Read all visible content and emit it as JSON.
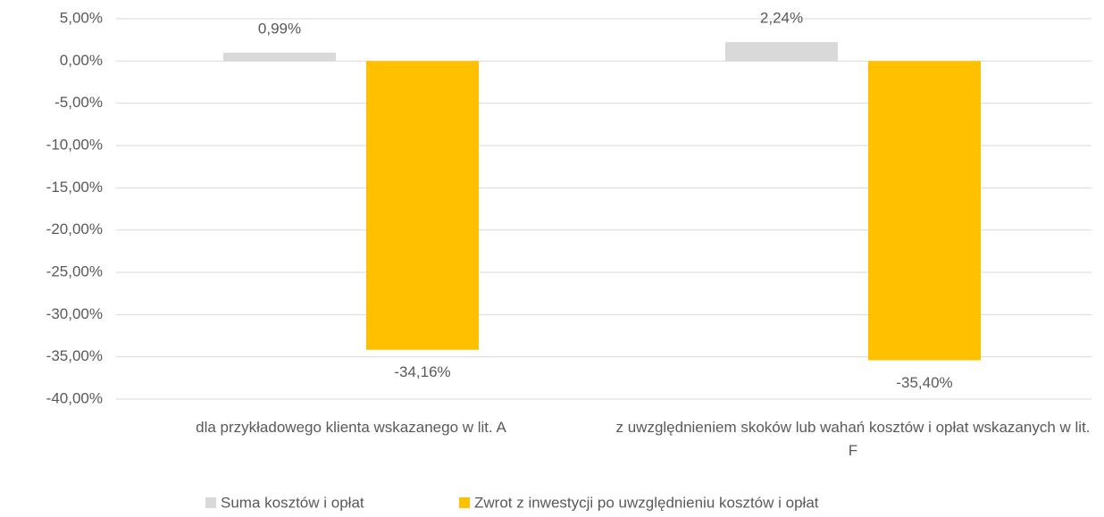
{
  "chart_data": {
    "type": "bar",
    "categories": [
      "dla przykładowego klienta wskazanego w lit. A",
      "z uwzględnieniem skoków lub wahań kosztów i opłat wskazanych w lit. F"
    ],
    "series": [
      {
        "name": "Suma kosztów i opłat",
        "color": "#d9d9d9",
        "values": [
          0.99,
          2.24
        ],
        "value_labels": [
          "0,99%",
          "2,24%"
        ]
      },
      {
        "name": "Zwrot z inwestycji po uwzględnieniu kosztów i opłat",
        "color": "#ffc000",
        "values": [
          -34.16,
          -35.4
        ],
        "value_labels": [
          "-34,16%",
          "-35,40%"
        ]
      }
    ],
    "ylim": [
      -40,
      5
    ],
    "yticks": [
      {
        "value": 5,
        "label": "5,00%"
      },
      {
        "value": 0,
        "label": "0,00%"
      },
      {
        "value": -5,
        "label": "-5,00%"
      },
      {
        "value": -10,
        "label": "-10,00%"
      },
      {
        "value": -15,
        "label": "-15,00%"
      },
      {
        "value": -20,
        "label": "-20,00%"
      },
      {
        "value": -25,
        "label": "-25,00%"
      },
      {
        "value": -30,
        "label": "-30,00%"
      },
      {
        "value": -35,
        "label": "-35,00%"
      },
      {
        "value": -40,
        "label": "-40,00%"
      }
    ],
    "grid": true,
    "legend": "bottom"
  }
}
